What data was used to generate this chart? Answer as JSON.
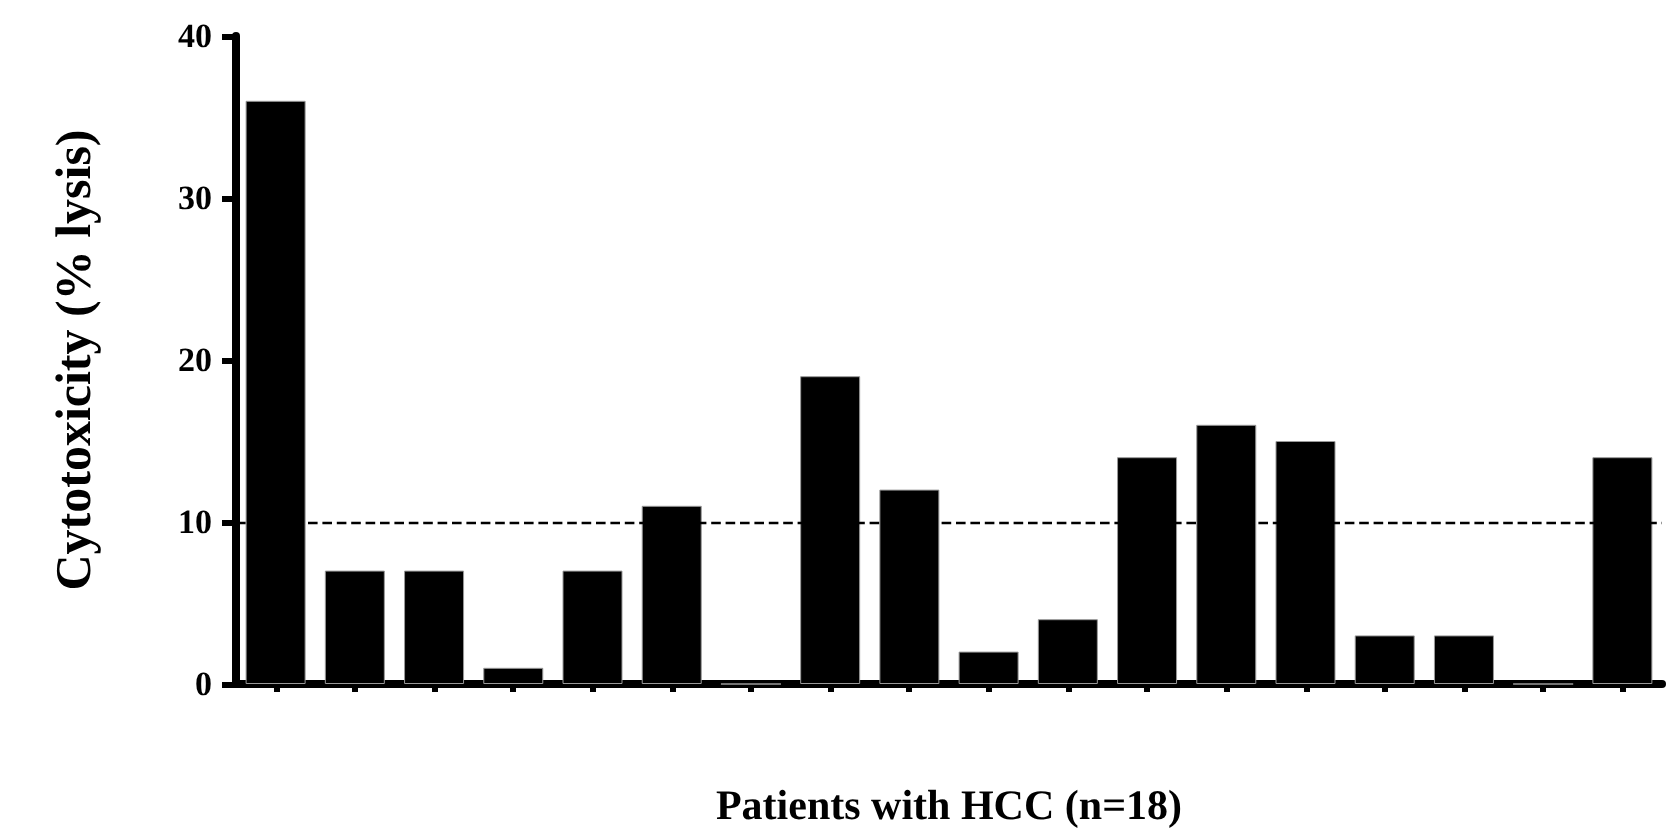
{
  "chart_data": {
    "type": "bar",
    "xlabel": "Patients with HCC (n=18)",
    "ylabel": "Cytotoxicity (% lysis)",
    "categories": [
      null,
      null,
      null,
      null,
      null,
      null,
      null,
      null,
      null,
      null,
      null,
      null,
      null,
      null,
      null,
      null,
      null,
      null
    ],
    "values": [
      36,
      7,
      7,
      1,
      7,
      11,
      0,
      19,
      12,
      2,
      4,
      14,
      16,
      15,
      3,
      3,
      0,
      14
    ],
    "color": "#000000",
    "ylim": [
      0,
      40
    ],
    "yticks": [
      0,
      10,
      20,
      30,
      40
    ],
    "grid": false,
    "ref_lines": [
      {
        "axis": "y",
        "value": 10,
        "line_style": "dashed",
        "color": "#000000"
      }
    ]
  }
}
